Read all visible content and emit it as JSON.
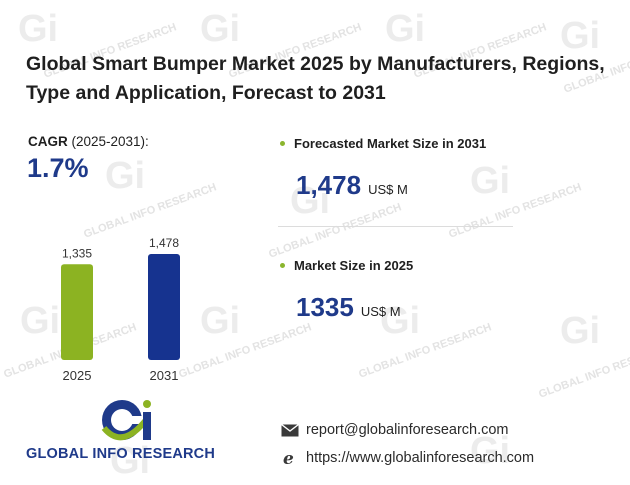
{
  "title": "Global Smart Bumper Market 2025 by Manufacturers, Regions, Type and Application, Forecast to 2031",
  "cagr": {
    "label_bold": "CAGR",
    "label_rest": " (2025-2031):",
    "value": "1.7%"
  },
  "forecast": {
    "label": "Forecasted Market Size in 2031",
    "value": "1,478",
    "unit": "US$ M"
  },
  "current": {
    "label": "Market Size in 2025",
    "value": "1335",
    "unit": "US$ M"
  },
  "logo": {
    "text": "GLOBAL INFO RESEARCH",
    "monogram": "Gi"
  },
  "watermark": {
    "text": "GLOBAL INFO RESEARCH",
    "monogram": "Gi"
  },
  "contact": {
    "email": "report@globalinforesearch.com",
    "website": "https://www.globalinforesearch.com",
    "email_icon": "envelope-icon",
    "web_icon": "browser-e-icon"
  },
  "colors": {
    "bar_2025": "#8cb322",
    "bar_2031": "#16338f",
    "accent_blue": "#1f3a8a",
    "bullet_green": "#8bb52e"
  },
  "chart_data": {
    "type": "bar",
    "categories": [
      "2025",
      "2031"
    ],
    "values": [
      1335,
      1478
    ],
    "value_labels": [
      "1,335",
      "1,478"
    ],
    "title": "",
    "xlabel": "",
    "ylabel": "",
    "ylim": [
      0,
      1478
    ],
    "grid": false,
    "legend": "none"
  }
}
